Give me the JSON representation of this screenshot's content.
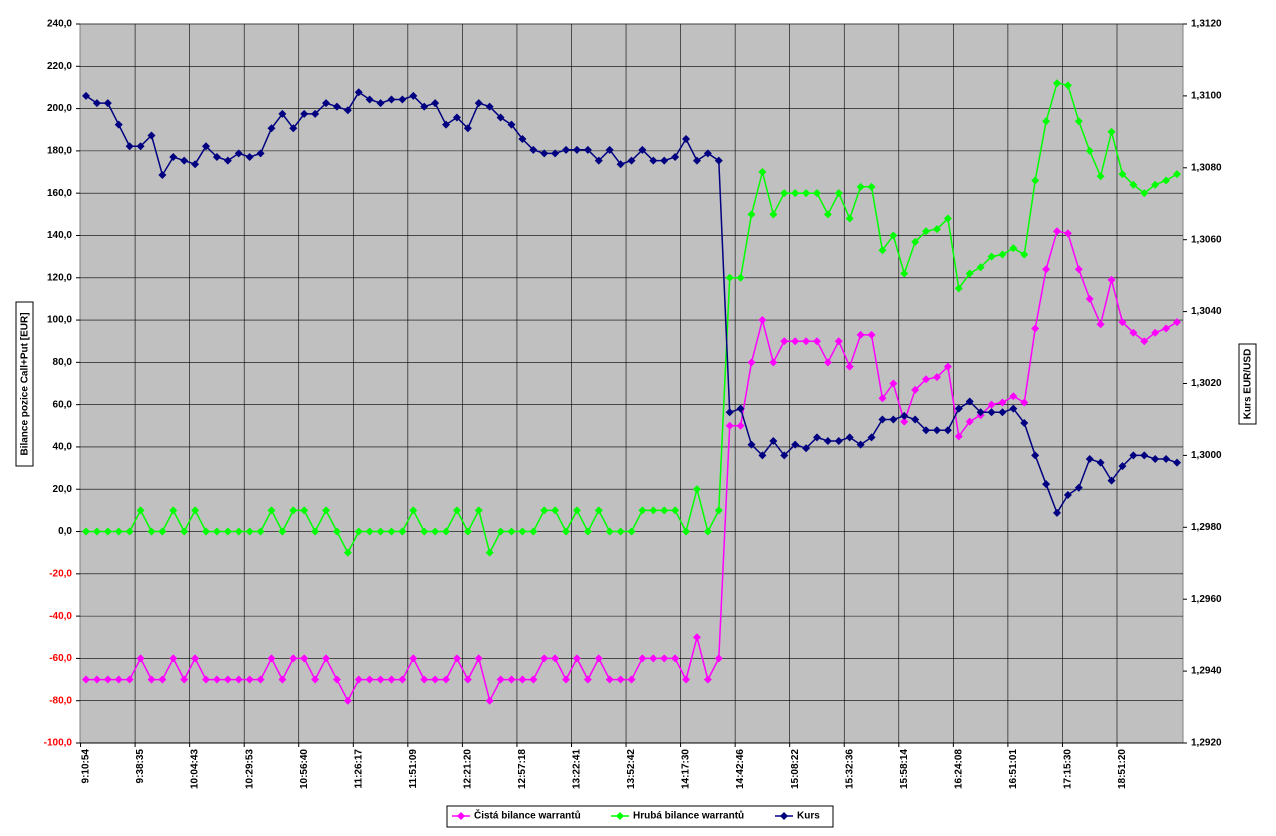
{
  "chart_data": {
    "type": "line",
    "ylabel": "Bilance pozice Call+Put [EUR]",
    "y2label": "Kurs EUR/USD",
    "grid": true,
    "legend": "bottom",
    "ylim": [
      -100,
      240
    ],
    "yticks": [
      {
        "value": -100,
        "label": "-100,0"
      },
      {
        "value": -80,
        "label": "-80,0"
      },
      {
        "value": -60,
        "label": "-60,0"
      },
      {
        "value": -40,
        "label": "-40,0"
      },
      {
        "value": -20,
        "label": "-20,0"
      },
      {
        "value": 0,
        "label": "0,0"
      },
      {
        "value": 20,
        "label": "20,0"
      },
      {
        "value": 40,
        "label": "40,0"
      },
      {
        "value": 60,
        "label": "60,0"
      },
      {
        "value": 80,
        "label": "80,0"
      },
      {
        "value": 100,
        "label": "100,0"
      },
      {
        "value": 120,
        "label": "120,0"
      },
      {
        "value": 140,
        "label": "140,0"
      },
      {
        "value": 160,
        "label": "160,0"
      },
      {
        "value": 180,
        "label": "180,0"
      },
      {
        "value": 200,
        "label": "200,0"
      },
      {
        "value": 220,
        "label": "220,0"
      },
      {
        "value": 240,
        "label": "240,0"
      }
    ],
    "y2lim": [
      1.292,
      1.312
    ],
    "y2ticks": [
      {
        "value": 1.292,
        "label": "1,2920"
      },
      {
        "value": 1.294,
        "label": "1,2940"
      },
      {
        "value": 1.296,
        "label": "1,2960"
      },
      {
        "value": 1.298,
        "label": "1,2980"
      },
      {
        "value": 1.3,
        "label": "1,3000"
      },
      {
        "value": 1.302,
        "label": "1,3020"
      },
      {
        "value": 1.304,
        "label": "1,3040"
      },
      {
        "value": 1.306,
        "label": "1,3060"
      },
      {
        "value": 1.308,
        "label": "1,3080"
      },
      {
        "value": 1.31,
        "label": "1,3100"
      },
      {
        "value": 1.312,
        "label": "1,3120"
      }
    ],
    "categories": [
      "9:10:54",
      null,
      null,
      null,
      null,
      "9:38:35",
      null,
      null,
      null,
      null,
      "10:04:43",
      null,
      null,
      null,
      null,
      "10:29:53",
      null,
      null,
      null,
      null,
      "10:56:40",
      null,
      null,
      null,
      null,
      "11:26:17",
      null,
      null,
      null,
      null,
      "11:51:09",
      null,
      null,
      null,
      null,
      "12:21:20",
      null,
      null,
      null,
      null,
      "12:57:18",
      null,
      null,
      null,
      null,
      "13:22:41",
      null,
      null,
      null,
      null,
      "13:52:42",
      null,
      null,
      null,
      null,
      "14:17:30",
      null,
      null,
      null,
      null,
      "14:42:46",
      null,
      null,
      null,
      null,
      "15:08:22",
      null,
      null,
      null,
      null,
      "15:32:36",
      null,
      null,
      null,
      null,
      "15:58:14",
      null,
      null,
      null,
      null,
      "16:24:08",
      null,
      null,
      null,
      null,
      "16:51:01",
      null,
      null,
      null,
      null,
      "17:15:30",
      null,
      null,
      null,
      null,
      "18:51:20",
      null,
      null,
      null,
      null,
      null
    ],
    "series": [
      {
        "name": "Čistá bilance warrantů",
        "color": "#ff00ff",
        "values": [
          -70,
          -70,
          -70,
          -70,
          -70,
          -60,
          -70,
          -70,
          -60,
          -70,
          -60,
          -70,
          -70,
          -70,
          -70,
          -70,
          -70,
          -60,
          -70,
          -60,
          -60,
          -70,
          -60,
          -70,
          -80,
          -70,
          -70,
          -70,
          -70,
          -70,
          -60,
          -70,
          -70,
          -70,
          -60,
          -70,
          -60,
          -80,
          -70,
          -70,
          -70,
          -70,
          -60,
          -60,
          -70,
          -60,
          -70,
          -60,
          -70,
          -70,
          -70,
          -60,
          -60,
          -60,
          -60,
          -70,
          -50,
          -70,
          -60,
          50,
          50,
          80,
          100,
          80,
          90,
          90,
          90,
          90,
          80,
          90,
          78,
          93,
          93,
          63,
          70,
          52,
          67,
          72,
          73,
          78,
          45,
          52,
          55,
          60,
          61,
          64,
          61,
          96,
          124,
          142,
          141,
          124,
          110,
          98,
          119,
          99,
          94,
          90,
          94,
          96,
          99
        ]
      },
      {
        "name": "Hrubá bilance warrantů",
        "color": "#00ff00",
        "values": [
          0,
          0,
          0,
          0,
          0,
          10,
          0,
          0,
          10,
          0,
          10,
          0,
          0,
          0,
          0,
          0,
          0,
          10,
          0,
          10,
          10,
          0,
          10,
          0,
          -10,
          0,
          0,
          0,
          0,
          0,
          10,
          0,
          0,
          0,
          10,
          0,
          10,
          -10,
          0,
          0,
          0,
          0,
          10,
          10,
          0,
          10,
          0,
          10,
          0,
          0,
          0,
          10,
          10,
          10,
          10,
          0,
          20,
          0,
          10,
          120,
          120,
          150,
          170,
          150,
          160,
          160,
          160,
          160,
          150,
          160,
          148,
          163,
          163,
          133,
          140,
          122,
          137,
          142,
          143,
          148,
          115,
          122,
          125,
          130,
          131,
          134,
          131,
          166,
          194,
          212,
          211,
          194,
          180,
          168,
          189,
          169,
          164,
          160,
          164,
          166,
          169
        ]
      },
      {
        "name": "Kurs",
        "color": "#000080",
        "axis": "y2",
        "values": [
          1.31,
          1.3098,
          1.3098,
          1.3092,
          1.3086,
          1.3086,
          1.3089,
          1.3078,
          1.3083,
          1.3082,
          1.3081,
          1.3086,
          1.3083,
          1.3082,
          1.3084,
          1.3083,
          1.3084,
          1.3091,
          1.3095,
          1.3091,
          1.3095,
          1.3095,
          1.3098,
          1.3097,
          1.3096,
          1.3101,
          1.3099,
          1.3098,
          1.3099,
          1.3099,
          1.31,
          1.3097,
          1.3098,
          1.3092,
          1.3094,
          1.3091,
          1.3098,
          1.3097,
          1.3094,
          1.3092,
          1.3088,
          1.3085,
          1.3084,
          1.3084,
          1.3085,
          1.3085,
          1.3085,
          1.3082,
          1.3085,
          1.3081,
          1.3082,
          1.3085,
          1.3082,
          1.3082,
          1.3083,
          1.3088,
          1.3082,
          1.3084,
          1.3082,
          1.3012,
          1.3013,
          1.3003,
          1.3,
          1.3004,
          1.3,
          1.3003,
          1.3002,
          1.3005,
          1.3004,
          1.3004,
          1.3005,
          1.3003,
          1.3005,
          1.301,
          1.301,
          1.3011,
          1.301,
          1.3007,
          1.3007,
          1.3007,
          1.3013,
          1.3015,
          1.3012,
          1.3012,
          1.3012,
          1.3013,
          1.3009,
          1.3,
          1.2992,
          1.2984,
          1.2989,
          1.2991,
          1.2999,
          1.2998,
          1.2993,
          1.2997,
          1.3,
          1.3,
          1.2999,
          1.2999,
          1.2998
        ]
      }
    ]
  }
}
